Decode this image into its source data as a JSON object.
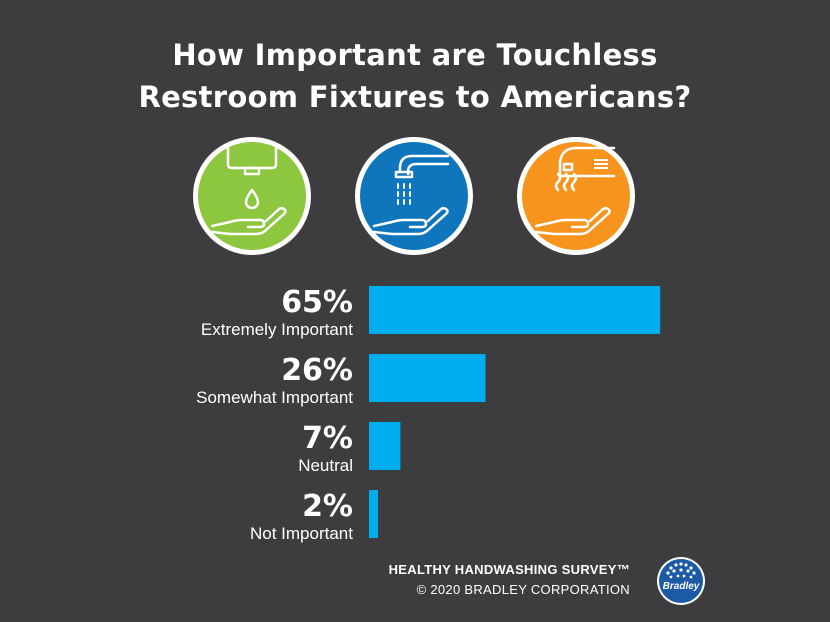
{
  "title": {
    "line1": "How Important are Touchless",
    "line2": "Restroom Fixtures to Americans?"
  },
  "icons": [
    {
      "name": "soap-dispenser-icon",
      "color": "#8dc63f"
    },
    {
      "name": "faucet-icon",
      "color": "#0f75bc"
    },
    {
      "name": "hand-dryer-icon",
      "color": "#f7941d"
    }
  ],
  "chart_data": {
    "type": "bar",
    "orientation": "horizontal",
    "categories": [
      "Extremely Important",
      "Somewhat Important",
      "Neutral",
      "Not Important"
    ],
    "values": [
      65,
      26,
      7,
      2
    ],
    "value_labels": [
      "65%",
      "26%",
      "7%",
      "2%"
    ],
    "unit": "%",
    "bar_color": "#00aeef",
    "xlim": [
      0,
      100
    ]
  },
  "footer": {
    "survey": "HEALTHY HANDWASHING SURVEY™",
    "copyright": "© 2020 BRADLEY CORPORATION"
  },
  "logo": {
    "text": "Bradley",
    "color": "#1c5aa6"
  },
  "colors": {
    "background": "#3d3d3f",
    "text": "#ffffff"
  }
}
